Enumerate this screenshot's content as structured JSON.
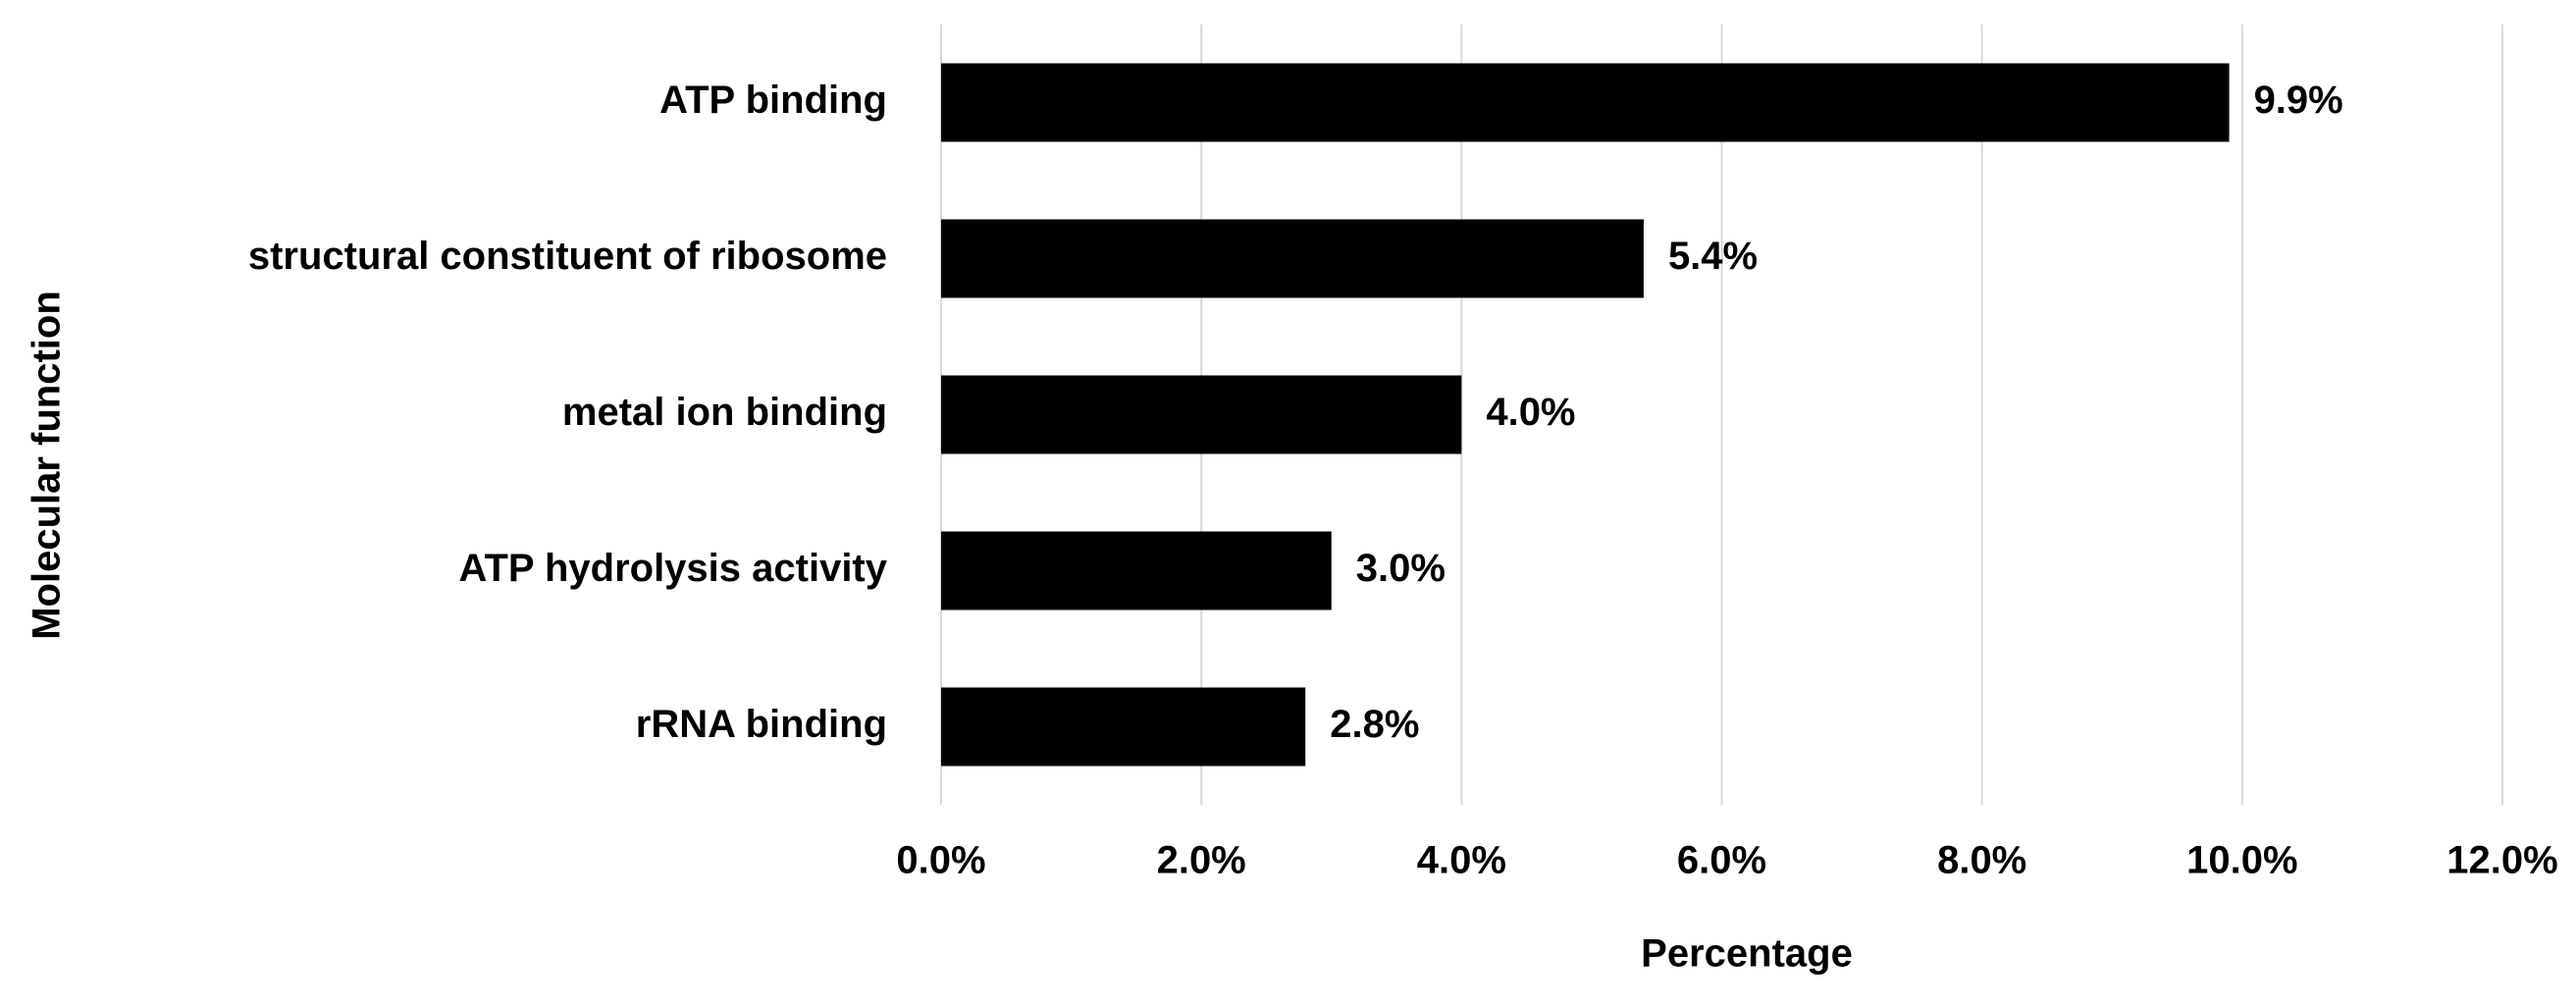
{
  "chart_data": {
    "type": "barh",
    "x_label": "Percentage",
    "y_label": "Molecular function",
    "categories": [
      "ATP binding",
      "structural constituent of ribosome",
      "metal ion binding",
      "ATP hydrolysis activity",
      "rRNA binding"
    ],
    "values": [
      9.9,
      5.4,
      4.0,
      3.0,
      2.8
    ],
    "value_labels": [
      "9.9%",
      "5.4%",
      "4.0%",
      "3.0%",
      "2.8%"
    ],
    "color": "#000000",
    "xlim": [
      0,
      12
    ],
    "xticks": [
      {
        "value": 0,
        "label": "0.0%"
      },
      {
        "value": 2,
        "label": "2.0%"
      },
      {
        "value": 4,
        "label": "4.0%"
      },
      {
        "value": 6,
        "label": "6.0%"
      },
      {
        "value": 8,
        "label": "8.0%"
      },
      {
        "value": 10,
        "label": "10.0%"
      },
      {
        "value": 12,
        "label": "12.0%"
      }
    ],
    "grid": true
  }
}
